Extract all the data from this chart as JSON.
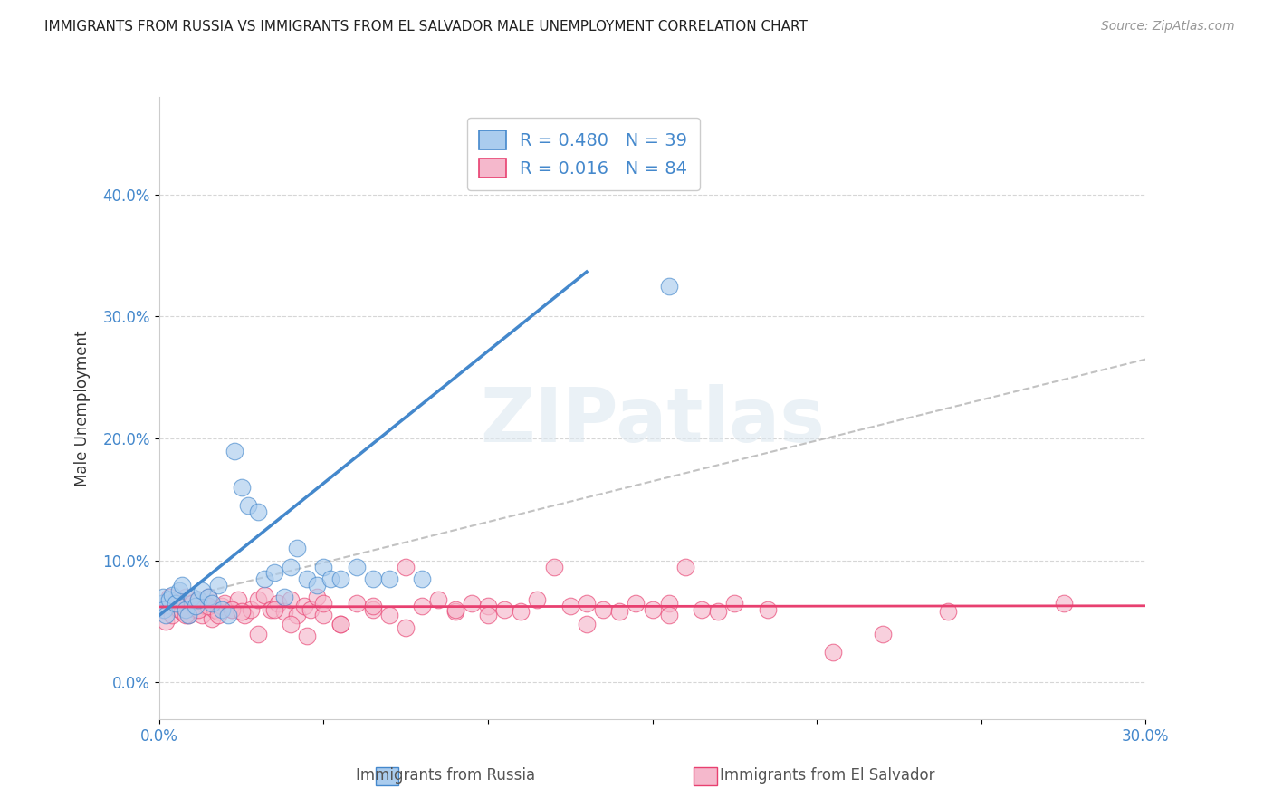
{
  "title": "IMMIGRANTS FROM RUSSIA VS IMMIGRANTS FROM EL SALVADOR MALE UNEMPLOYMENT CORRELATION CHART",
  "source": "Source: ZipAtlas.com",
  "xlabel_russia": "Immigrants from Russia",
  "xlabel_elsalvador": "Immigrants from El Salvador",
  "ylabel": "Male Unemployment",
  "russia_R": 0.48,
  "russia_N": 39,
  "elsalvador_R": 0.016,
  "elsalvador_N": 84,
  "russia_color": "#aaccee",
  "russia_line_color": "#4488cc",
  "elsalvador_color": "#f5b8cc",
  "elsalvador_line_color": "#e84070",
  "gray_line_color": "#b8b8b8",
  "background_color": "#ffffff",
  "xlim": [
    0.0,
    0.3
  ],
  "ylim": [
    -0.03,
    0.48
  ],
  "y_ticks": [
    0.0,
    0.1,
    0.2,
    0.3,
    0.4
  ],
  "y_tick_labels": [
    "0.0%",
    "10.0%",
    "20.0%",
    "30.0%",
    "40.0%"
  ],
  "x_tick_labels_show": [
    "0.0%",
    "30.0%"
  ],
  "russia_x": [
    0.0008,
    0.0012,
    0.0015,
    0.002,
    0.003,
    0.004,
    0.005,
    0.006,
    0.007,
    0.008,
    0.009,
    0.01,
    0.011,
    0.012,
    0.013,
    0.015,
    0.016,
    0.018,
    0.019,
    0.021,
    0.023,
    0.025,
    0.027,
    0.03,
    0.032,
    0.035,
    0.038,
    0.04,
    0.042,
    0.045,
    0.048,
    0.05,
    0.052,
    0.055,
    0.06,
    0.065,
    0.07,
    0.08,
    0.155
  ],
  "russia_y": [
    0.065,
    0.07,
    0.06,
    0.055,
    0.068,
    0.072,
    0.065,
    0.075,
    0.08,
    0.06,
    0.055,
    0.07,
    0.063,
    0.068,
    0.075,
    0.07,
    0.065,
    0.08,
    0.06,
    0.055,
    0.19,
    0.16,
    0.145,
    0.14,
    0.085,
    0.09,
    0.07,
    0.095,
    0.11,
    0.085,
    0.08,
    0.095,
    0.085,
    0.085,
    0.095,
    0.085,
    0.085,
    0.085,
    0.325
  ],
  "elsalvador_x": [
    0.001,
    0.002,
    0.003,
    0.004,
    0.005,
    0.006,
    0.007,
    0.008,
    0.009,
    0.01,
    0.011,
    0.012,
    0.013,
    0.014,
    0.015,
    0.016,
    0.017,
    0.018,
    0.019,
    0.02,
    0.022,
    0.024,
    0.026,
    0.028,
    0.03,
    0.032,
    0.034,
    0.036,
    0.038,
    0.04,
    0.042,
    0.044,
    0.046,
    0.048,
    0.05,
    0.055,
    0.06,
    0.065,
    0.07,
    0.075,
    0.08,
    0.085,
    0.09,
    0.095,
    0.1,
    0.105,
    0.11,
    0.115,
    0.12,
    0.125,
    0.13,
    0.135,
    0.14,
    0.145,
    0.15,
    0.155,
    0.16,
    0.165,
    0.17,
    0.175,
    0.005,
    0.008,
    0.012,
    0.015,
    0.018,
    0.022,
    0.025,
    0.03,
    0.035,
    0.04,
    0.045,
    0.05,
    0.055,
    0.065,
    0.075,
    0.09,
    0.1,
    0.13,
    0.155,
    0.185,
    0.205,
    0.22,
    0.24,
    0.275
  ],
  "elsalvador_y": [
    0.06,
    0.05,
    0.07,
    0.055,
    0.065,
    0.06,
    0.058,
    0.07,
    0.055,
    0.065,
    0.06,
    0.068,
    0.055,
    0.063,
    0.07,
    0.052,
    0.06,
    0.058,
    0.063,
    0.065,
    0.06,
    0.068,
    0.055,
    0.06,
    0.068,
    0.072,
    0.06,
    0.065,
    0.058,
    0.068,
    0.055,
    0.063,
    0.06,
    0.07,
    0.055,
    0.048,
    0.065,
    0.06,
    0.055,
    0.095,
    0.063,
    0.068,
    0.058,
    0.065,
    0.063,
    0.06,
    0.058,
    0.068,
    0.095,
    0.063,
    0.065,
    0.06,
    0.058,
    0.065,
    0.06,
    0.065,
    0.095,
    0.06,
    0.058,
    0.065,
    0.068,
    0.055,
    0.06,
    0.063,
    0.055,
    0.06,
    0.058,
    0.04,
    0.06,
    0.048,
    0.038,
    0.065,
    0.048,
    0.063,
    0.045,
    0.06,
    0.055,
    0.048,
    0.055,
    0.06,
    0.025,
    0.04,
    0.058,
    0.065
  ]
}
